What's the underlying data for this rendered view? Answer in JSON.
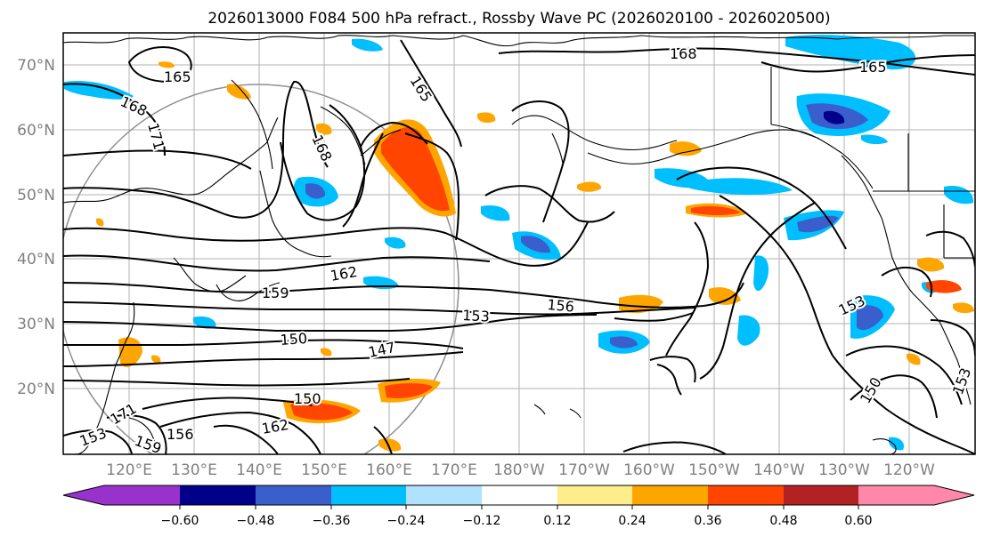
{
  "title": "2026013000 F084 500 hPa refract., Rossby Wave PC (2026020100 - 2026020500)",
  "lat_labels": [
    "70°N",
    "60°N",
    "50°N",
    "40°N",
    "30°N",
    "20°N"
  ],
  "lon_labels": [
    "120°E",
    "130°E",
    "140°E",
    "150°E",
    "160°E",
    "170°E",
    "180°W",
    "170°W",
    "160°W",
    "150°W",
    "140°W",
    "130°W",
    "120°W"
  ],
  "contour_labels": [
    "165",
    "168",
    "171",
    "165",
    "168",
    "168",
    "165",
    "162",
    "159",
    "156",
    "153",
    "150",
    "147",
    "150",
    "162",
    "156",
    "153",
    "153",
    "150",
    "153",
    "171",
    "159"
  ],
  "colorbar": {
    "colors": [
      "#9932cc",
      "#00008b",
      "#3a5fcd",
      "#00bfff",
      "#b0e2ff",
      "#ffffff",
      "#ffec8b",
      "#ffa500",
      "#ff4500",
      "#b22222",
      "#ff88aa"
    ],
    "tick_labels": [
      "−0.60",
      "−0.48",
      "−0.36",
      "−0.24",
      "−0.12",
      "0.12",
      "0.24",
      "0.36",
      "0.48",
      "0.60"
    ]
  }
}
